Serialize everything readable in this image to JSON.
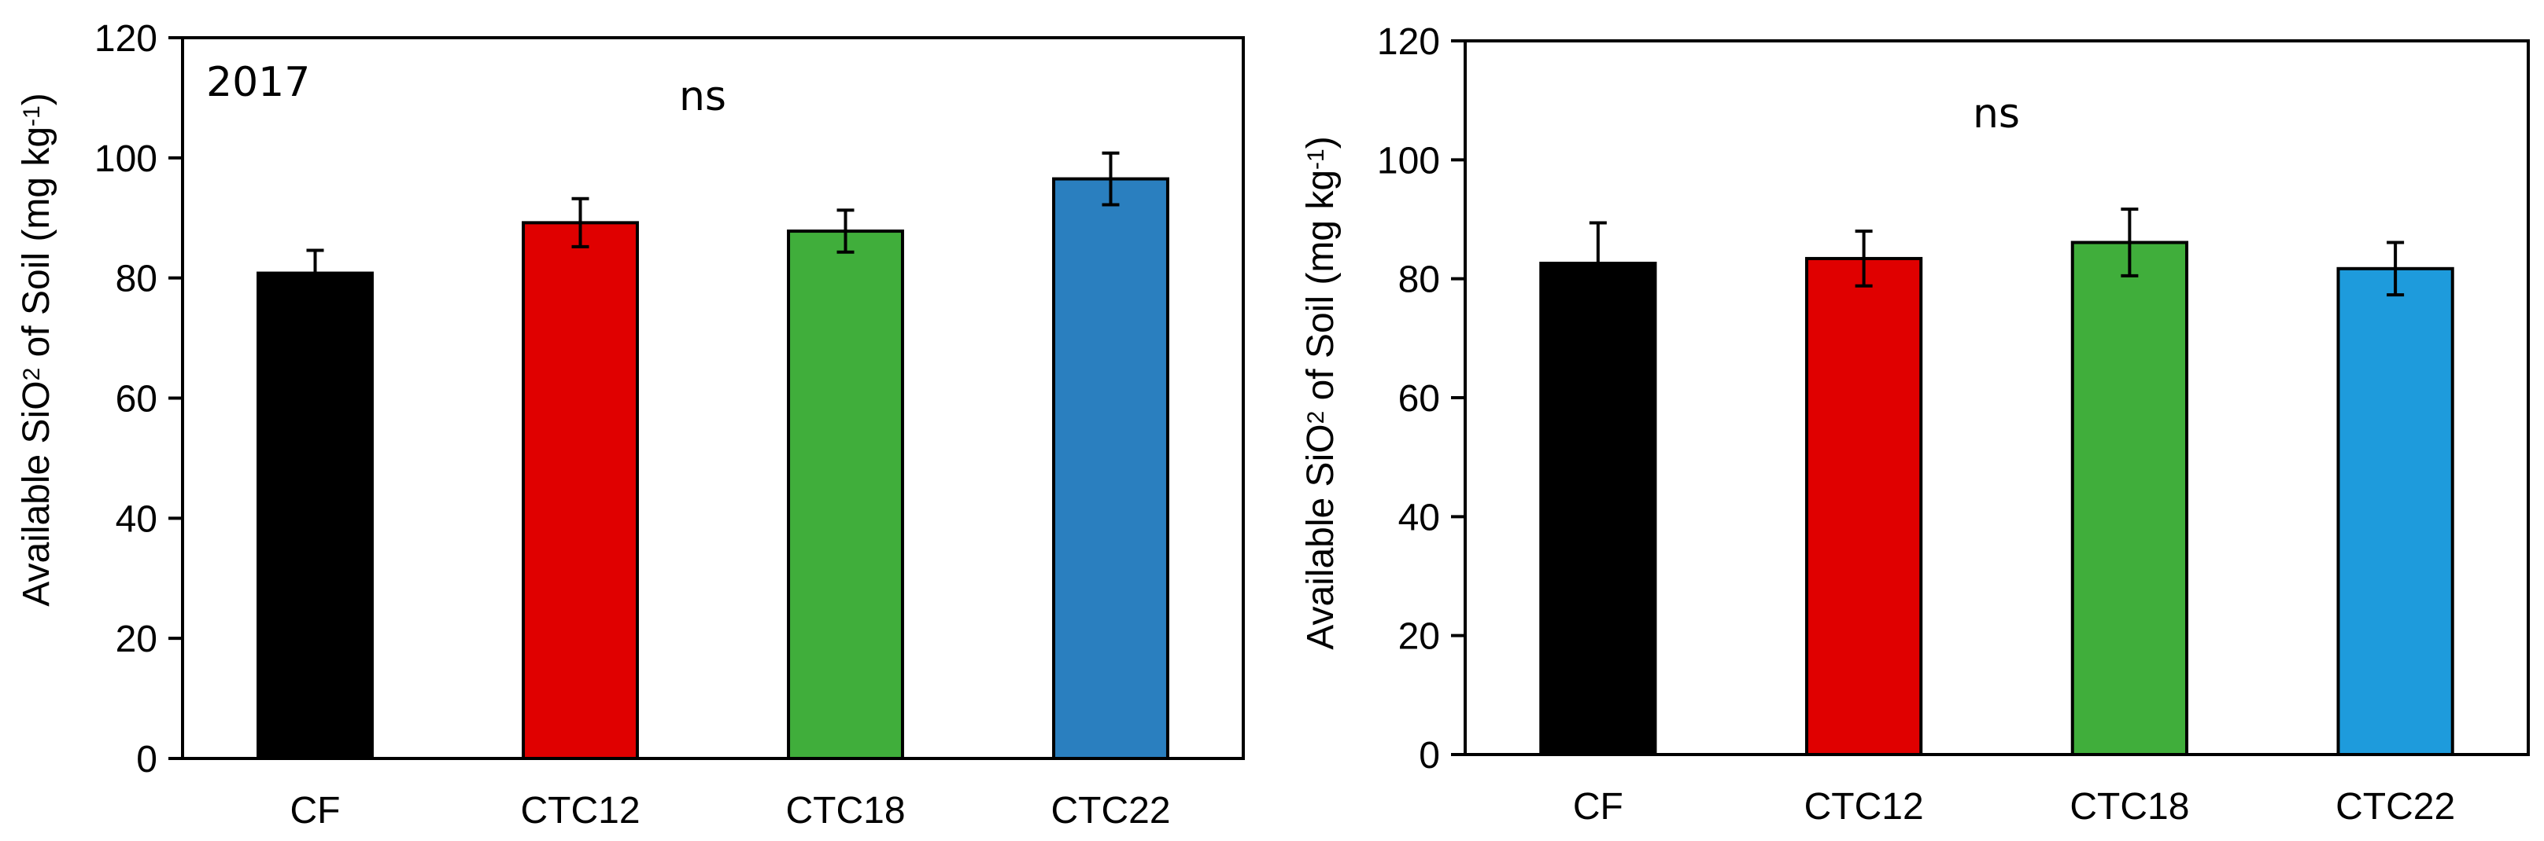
{
  "chart_data": [
    {
      "type": "bar",
      "title": "",
      "panel_label": "2017",
      "significance": "ns",
      "xlabel": "",
      "ylabel": {
        "prefix": "Available SiO",
        "sup1": "2",
        "middle": " of Soil (mg kg",
        "sup2": "-1",
        "suffix": ")"
      },
      "ylim": [
        0,
        120
      ],
      "yticks": [
        "0",
        "20",
        "40",
        "60",
        "80",
        "100",
        "120"
      ],
      "categories": [
        "CF",
        "CTC12",
        "CTC18",
        "CTC22"
      ],
      "values": [
        80.8,
        89.2,
        87.8,
        96.5
      ],
      "errors": [
        3.8,
        4.0,
        3.5,
        4.3
      ],
      "colors": [
        "#000000",
        "#e00000",
        "#40ae3b",
        "#2a7fbf"
      ]
    },
    {
      "type": "bar",
      "title": "",
      "panel_label": "",
      "significance": "ns",
      "xlabel": "",
      "ylabel": {
        "prefix": "Available SiO",
        "sup1": "2",
        "middle": " of Soil (mg kg",
        "sup2": "-1",
        "suffix": ")"
      },
      "ylim": [
        0,
        120
      ],
      "yticks": [
        "0",
        "20",
        "40",
        "60",
        "80",
        "100",
        "120"
      ],
      "categories": [
        "CF",
        "CTC12",
        "CTC18",
        "CTC22"
      ],
      "values": [
        82.6,
        83.4,
        86.1,
        81.7
      ],
      "errors": [
        6.8,
        4.6,
        5.6,
        4.4
      ],
      "colors": [
        "#000000",
        "#e00000",
        "#40ae3b",
        "#1e9bdc"
      ]
    }
  ]
}
